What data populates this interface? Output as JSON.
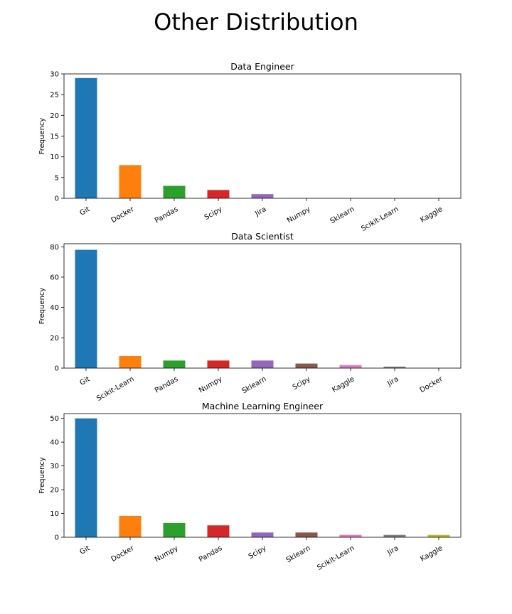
{
  "figure": {
    "title": "Other Distribution"
  },
  "chart_data": [
    {
      "type": "bar",
      "title": "Data Engineer",
      "xlabel": "",
      "ylabel": "Frequency",
      "ylim": [
        0,
        30
      ],
      "yticks": [
        0,
        5,
        10,
        15,
        20,
        25,
        30
      ],
      "categories": [
        "Git",
        "Docker",
        "Pandas",
        "Scipy",
        "Jira",
        "Numpy",
        "Sklearn",
        "Scikit-Learn",
        "Kaggle"
      ],
      "values": [
        29,
        8,
        3,
        2,
        1,
        0,
        0,
        0,
        0
      ],
      "colors": [
        "#1f77b4",
        "#ff7f0e",
        "#2ca02c",
        "#d62728",
        "#9467bd",
        "#8c564b",
        "#e377c2",
        "#7f7f7f",
        "#bcbd22"
      ],
      "grid": false,
      "legend": "none"
    },
    {
      "type": "bar",
      "title": "Data Scientist",
      "xlabel": "",
      "ylabel": "Frequency",
      "ylim": [
        0,
        82
      ],
      "yticks": [
        0,
        20,
        40,
        60,
        80
      ],
      "categories": [
        "Git",
        "Scikit-Learn",
        "Pandas",
        "Numpy",
        "Sklearn",
        "Scipy",
        "Kaggle",
        "Jira",
        "Docker"
      ],
      "values": [
        78,
        8,
        5,
        5,
        5,
        3,
        2,
        1,
        0
      ],
      "colors": [
        "#1f77b4",
        "#ff7f0e",
        "#2ca02c",
        "#d62728",
        "#9467bd",
        "#8c564b",
        "#e377c2",
        "#7f7f7f",
        "#bcbd22"
      ],
      "grid": false,
      "legend": "none"
    },
    {
      "type": "bar",
      "title": "Machine Learning Engineer",
      "xlabel": "",
      "ylabel": "Frequency",
      "ylim": [
        0,
        52
      ],
      "yticks": [
        0,
        10,
        20,
        30,
        40,
        50
      ],
      "categories": [
        "Git",
        "Docker",
        "Numpy",
        "Pandas",
        "Scipy",
        "Sklearn",
        "Scikit-Learn",
        "Jira",
        "Kaggle"
      ],
      "values": [
        50,
        9,
        6,
        5,
        2,
        2,
        1,
        1,
        1
      ],
      "colors": [
        "#1f77b4",
        "#ff7f0e",
        "#2ca02c",
        "#d62728",
        "#9467bd",
        "#8c564b",
        "#e377c2",
        "#7f7f7f",
        "#bcbd22"
      ],
      "grid": false,
      "legend": "none"
    }
  ]
}
